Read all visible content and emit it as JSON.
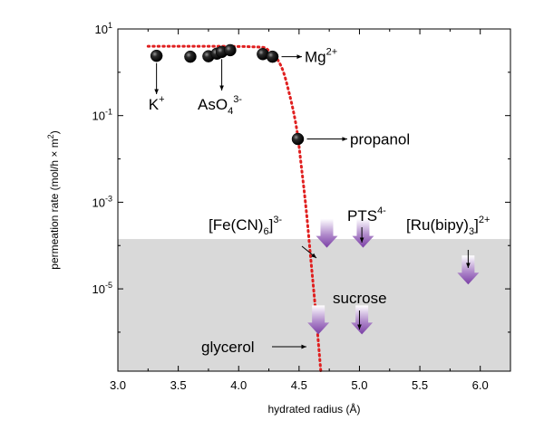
{
  "chart_data": {
    "type": "scatter",
    "xlabel": "hydrated radius (Å)",
    "ylabel_main": "permeation rate (mol/h × m",
    "ylabel_sup": "2",
    "ylabel_tail": ")",
    "xlim": [
      3.0,
      6.25
    ],
    "ylim_log10": [
      -6.9,
      1.0
    ],
    "y_scale": "log",
    "x_ticks": [
      3.0,
      3.5,
      4.0,
      4.5,
      5.0,
      5.5,
      6.0
    ],
    "x_tick_labels": [
      "3.0",
      "3.5",
      "4.0",
      "4.5",
      "5.0",
      "5.5",
      "6.0"
    ],
    "y_ticks": [
      {
        "value": 1,
        "base": "10",
        "exp": "1"
      },
      {
        "value": -1,
        "base": "10",
        "exp": "-1"
      },
      {
        "value": -3,
        "base": "10",
        "exp": "-3"
      },
      {
        "value": -5,
        "base": "10",
        "exp": "-5"
      }
    ],
    "shaded_region": {
      "y_max_log10": -3.85,
      "color": "#d9d9d9"
    },
    "measured_points": [
      {
        "x": 3.32,
        "y_log10": 0.38
      },
      {
        "x": 3.6,
        "y_log10": 0.36
      },
      {
        "x": 3.75,
        "y_log10": 0.37
      },
      {
        "x": 3.82,
        "y_log10": 0.43
      },
      {
        "x": 3.86,
        "y_log10": 0.47
      },
      {
        "x": 3.93,
        "y_log10": 0.51
      },
      {
        "x": 4.2,
        "y_log10": 0.42
      },
      {
        "x": 4.28,
        "y_log10": 0.36
      },
      {
        "x": 4.49,
        "y_log10": -1.54
      }
    ],
    "limit_arrows": [
      {
        "x": 4.73,
        "y_log10": -4.05
      },
      {
        "x": 5.03,
        "y_log10": -4.05
      },
      {
        "x": 5.9,
        "y_log10": -4.9
      },
      {
        "x": 4.66,
        "y_log10": -6.05
      },
      {
        "x": 5.02,
        "y_log10": -6.05
      }
    ],
    "fit_curve": {
      "color": "#e02020",
      "points": [
        [
          3.25,
          0.6
        ],
        [
          4.1,
          0.59
        ],
        [
          4.25,
          0.5
        ],
        [
          4.35,
          0.15
        ],
        [
          4.42,
          -0.5
        ],
        [
          4.48,
          -1.3
        ],
        [
          4.52,
          -2.2
        ],
        [
          4.56,
          -3.2
        ],
        [
          4.6,
          -4.4
        ],
        [
          4.64,
          -5.6
        ],
        [
          4.68,
          -6.9
        ]
      ]
    },
    "labels": [
      {
        "text": "K",
        "sup": "+"
      },
      {
        "text": "AsO",
        "sub": "4",
        "sup": "3-"
      },
      {
        "text": "Mg",
        "sup": "2+"
      },
      {
        "text": "propanol"
      },
      {
        "text": "[Fe(CN)",
        "sub": "6",
        "tail": "]",
        "sup": "3-"
      },
      {
        "text": "PTS",
        "sup": "4-"
      },
      {
        "text": "[Ru(bipy)",
        "sub": "3",
        "tail": "]",
        "sup": "2+"
      },
      {
        "text": "sucrose"
      },
      {
        "text": "glycerol"
      }
    ]
  }
}
